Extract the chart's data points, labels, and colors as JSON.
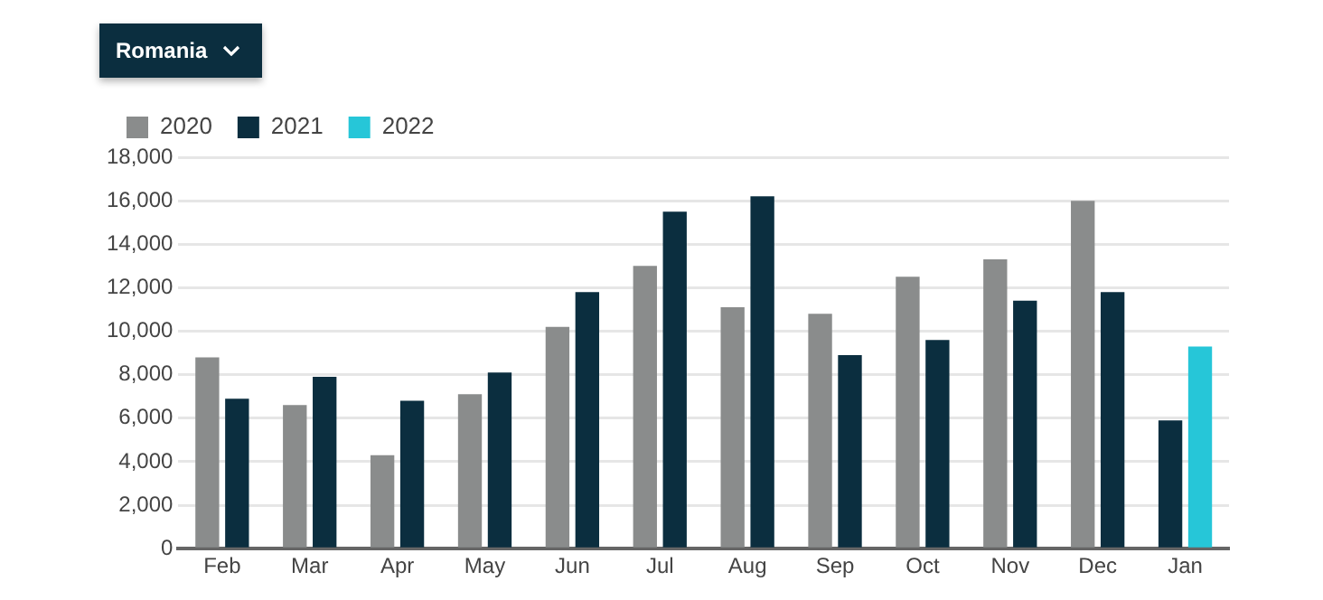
{
  "chart_data": {
    "type": "bar",
    "title": "Romania",
    "categories": [
      "Feb",
      "Mar",
      "Apr",
      "May",
      "Jun",
      "Jul",
      "Aug",
      "Sep",
      "Oct",
      "Nov",
      "Dec",
      "Jan"
    ],
    "series": [
      {
        "name": "2020",
        "color": "#8a8c8c",
        "values": [
          8800,
          6600,
          4300,
          7100,
          10200,
          13000,
          11100,
          10800,
          12500,
          13300,
          16000,
          null
        ]
      },
      {
        "name": "2021",
        "color": "#0b2e3f",
        "values": [
          6900,
          7900,
          6800,
          8100,
          11800,
          15500,
          16200,
          8900,
          9600,
          11400,
          11800,
          5900
        ]
      },
      {
        "name": "2022",
        "color": "#26c6d8",
        "values": [
          null,
          null,
          null,
          null,
          null,
          null,
          null,
          null,
          null,
          null,
          null,
          9300
        ]
      }
    ],
    "ylim": [
      0,
      18000
    ],
    "yticks": [
      {
        "value": 0,
        "label": "0"
      },
      {
        "value": 2000,
        "label": "2,000"
      },
      {
        "value": 4000,
        "label": "4,000"
      },
      {
        "value": 6000,
        "label": "6,000"
      },
      {
        "value": 8000,
        "label": "8,000"
      },
      {
        "value": 10000,
        "label": "10,000"
      },
      {
        "value": 12000,
        "label": "12,000"
      },
      {
        "value": 14000,
        "label": "14,000"
      },
      {
        "value": 16000,
        "label": "16,000"
      },
      {
        "value": 18000,
        "label": "18,000"
      }
    ],
    "grid": "y",
    "legend": "top left"
  }
}
